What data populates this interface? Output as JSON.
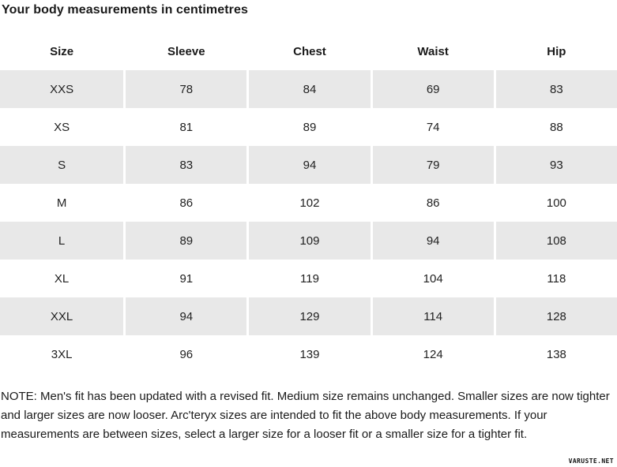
{
  "page": {
    "title": "Your body measurements in centimetres",
    "note": "NOTE: Men's fit has been updated with a revised fit. Medium size remains unchanged. Smaller sizes are now tighter and larger sizes are now looser. Arc'teryx sizes are intended to fit the above body measurements. If your measurements are between sizes, select a larger size for a looser fit or a smaller size for a tighter fit.",
    "watermark": "VARUSTE.NET"
  },
  "table": {
    "columns": [
      "Size",
      "Sleeve",
      "Chest",
      "Waist",
      "Hip"
    ],
    "rows": [
      [
        "XXS",
        "78",
        "84",
        "69",
        "83"
      ],
      [
        "XS",
        "81",
        "89",
        "74",
        "88"
      ],
      [
        "S",
        "83",
        "94",
        "79",
        "93"
      ],
      [
        "M",
        "86",
        "102",
        "86",
        "100"
      ],
      [
        "L",
        "89",
        "109",
        "94",
        "108"
      ],
      [
        "XL",
        "91",
        "119",
        "104",
        "118"
      ],
      [
        "XXL",
        "94",
        "129",
        "114",
        "128"
      ],
      [
        "3XL",
        "96",
        "139",
        "124",
        "138"
      ]
    ]
  },
  "colors": {
    "row_shaded": "#e8e8e8",
    "text": "#1a1a1a",
    "background": "#ffffff"
  },
  "chart_data": {
    "type": "table",
    "title": "Your body measurements in centimetres",
    "units": "centimetres",
    "columns": [
      "Size",
      "Sleeve",
      "Chest",
      "Waist",
      "Hip"
    ],
    "rows": [
      {
        "size": "XXS",
        "sleeve": 78,
        "chest": 84,
        "waist": 69,
        "hip": 83
      },
      {
        "size": "XS",
        "sleeve": 81,
        "chest": 89,
        "waist": 74,
        "hip": 88
      },
      {
        "size": "S",
        "sleeve": 83,
        "chest": 94,
        "waist": 79,
        "hip": 93
      },
      {
        "size": "M",
        "sleeve": 86,
        "chest": 102,
        "waist": 86,
        "hip": 100
      },
      {
        "size": "L",
        "sleeve": 89,
        "chest": 109,
        "waist": 94,
        "hip": 108
      },
      {
        "size": "XL",
        "sleeve": 91,
        "chest": 119,
        "waist": 104,
        "hip": 118
      },
      {
        "size": "XXL",
        "sleeve": 94,
        "chest": 129,
        "waist": 114,
        "hip": 128
      },
      {
        "size": "3XL",
        "sleeve": 96,
        "chest": 139,
        "waist": 124,
        "hip": 138
      }
    ],
    "layout": {
      "shaded_rows": "odd",
      "header_bold": true,
      "cell_alignment": "center"
    }
  }
}
